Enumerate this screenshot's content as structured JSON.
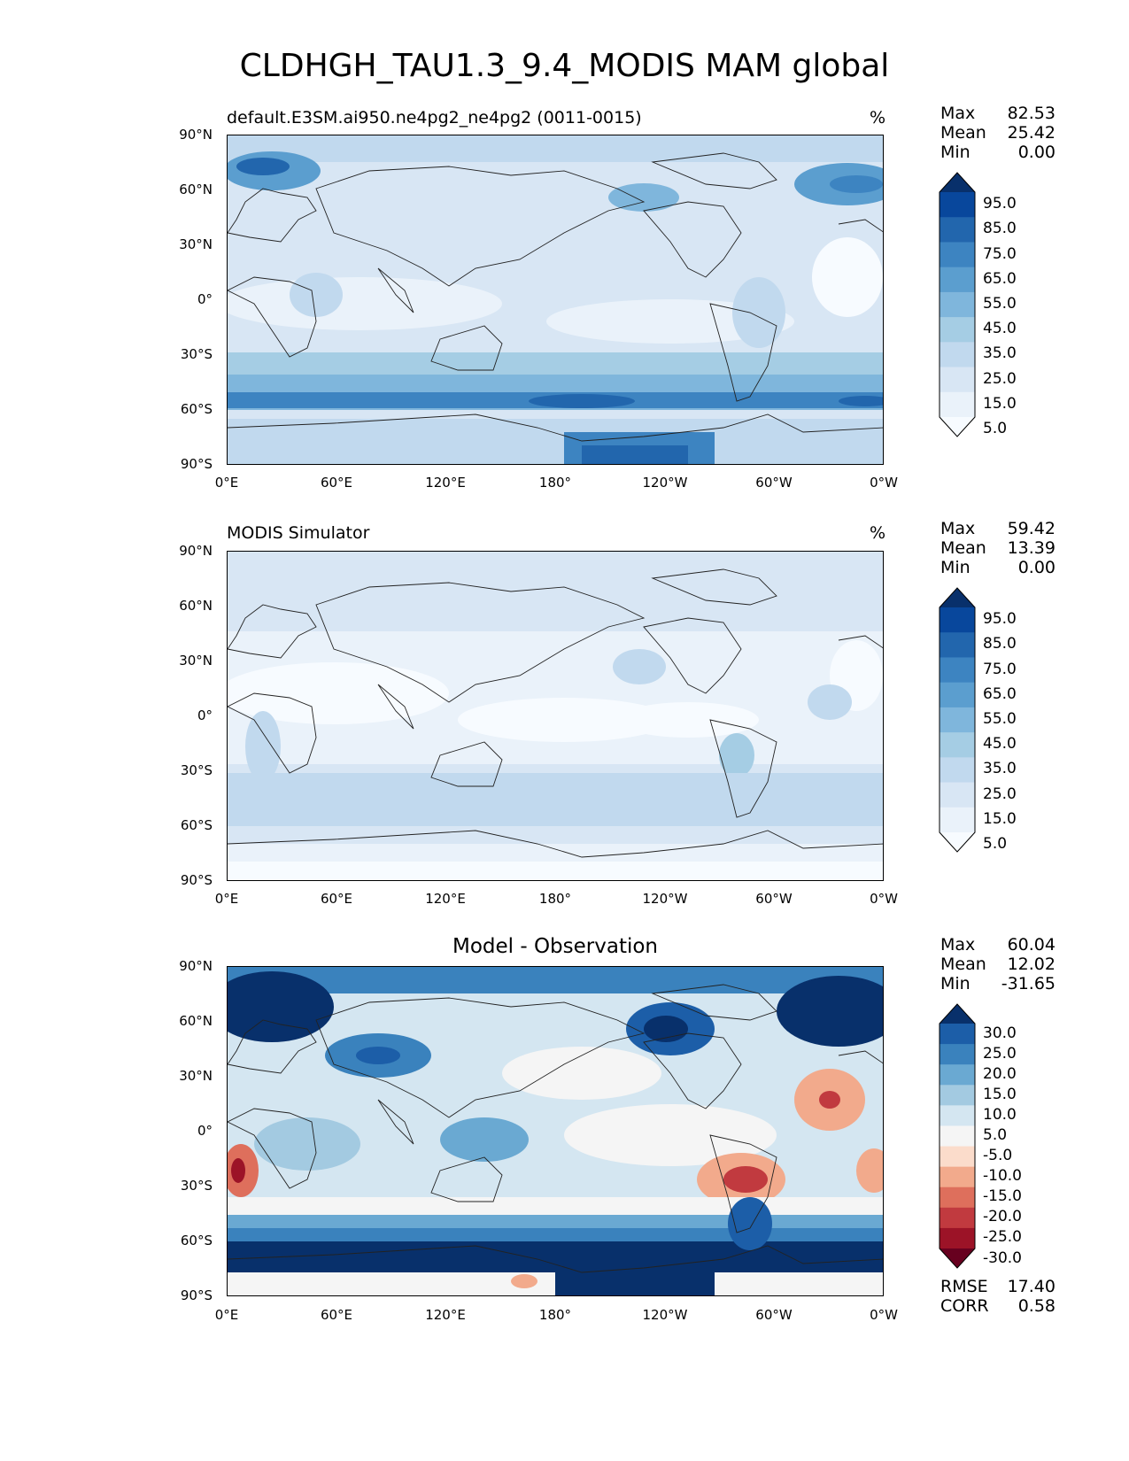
{
  "title": "CLDHGH_TAU1.3_9.4_MODIS MAM global",
  "lat_labels": [
    "90°N",
    "60°N",
    "30°N",
    "0°",
    "30°S",
    "60°S",
    "90°S"
  ],
  "lon_labels": [
    "0°E",
    "60°E",
    "120°E",
    "180°",
    "120°W",
    "60°W",
    "0°W"
  ],
  "panels": [
    {
      "name": "default.E3SM.ai950.ne4pg2_ne4pg2 (0011-0015)",
      "units": "%",
      "stats": {
        "max_label": "Max",
        "max": "82.53",
        "mean_label": "Mean",
        "mean": "25.42",
        "min_label": "Min",
        "min": "0.00"
      },
      "colorbar": {
        "labels": [
          "95.0",
          "85.0",
          "75.0",
          "65.0",
          "55.0",
          "45.0",
          "35.0",
          "25.0",
          "15.0",
          "5.0"
        ],
        "colors": [
          "#08306b",
          "#08479c",
          "#2266ad",
          "#3d84c1",
          "#5b9ecf",
          "#7fb6dc",
          "#a5cde4",
          "#c1d9ee",
          "#d8e6f4",
          "#eaf2fa",
          "#f7fbff"
        ]
      }
    },
    {
      "name": "MODIS Simulator",
      "units": "%",
      "stats": {
        "max_label": "Max",
        "max": "59.42",
        "mean_label": "Mean",
        "mean": "13.39",
        "min_label": "Min",
        "min": "0.00"
      },
      "colorbar": {
        "labels": [
          "95.0",
          "85.0",
          "75.0",
          "65.0",
          "55.0",
          "45.0",
          "35.0",
          "25.0",
          "15.0",
          "5.0"
        ],
        "colors": [
          "#08306b",
          "#08479c",
          "#2266ad",
          "#3d84c1",
          "#5b9ecf",
          "#7fb6dc",
          "#a5cde4",
          "#c1d9ee",
          "#d8e6f4",
          "#eaf2fa",
          "#f7fbff"
        ]
      }
    },
    {
      "name": "Model - Observation",
      "stats": {
        "max_label": "Max",
        "max": "60.04",
        "mean_label": "Mean",
        "mean": "12.02",
        "min_label": "Min",
        "min": "-31.65"
      },
      "colorbar": {
        "labels": [
          "30.0",
          "25.0",
          "20.0",
          "15.0",
          "10.0",
          "5.0",
          "-5.0",
          "-10.0",
          "-15.0",
          "-20.0",
          "-25.0",
          "-30.0"
        ],
        "colors": [
          "#08306b",
          "#1c5ea8",
          "#3a82bd",
          "#6aa9d2",
          "#a3cae1",
          "#d4e6f1",
          "#f5f5f5",
          "#fbdccb",
          "#f2aa8c",
          "#de6f5c",
          "#c13a3f",
          "#9c1327",
          "#67001f"
        ]
      },
      "error": {
        "rmse_label": "RMSE",
        "rmse": "17.40",
        "corr_label": "CORR",
        "corr": "0.58"
      }
    }
  ]
}
